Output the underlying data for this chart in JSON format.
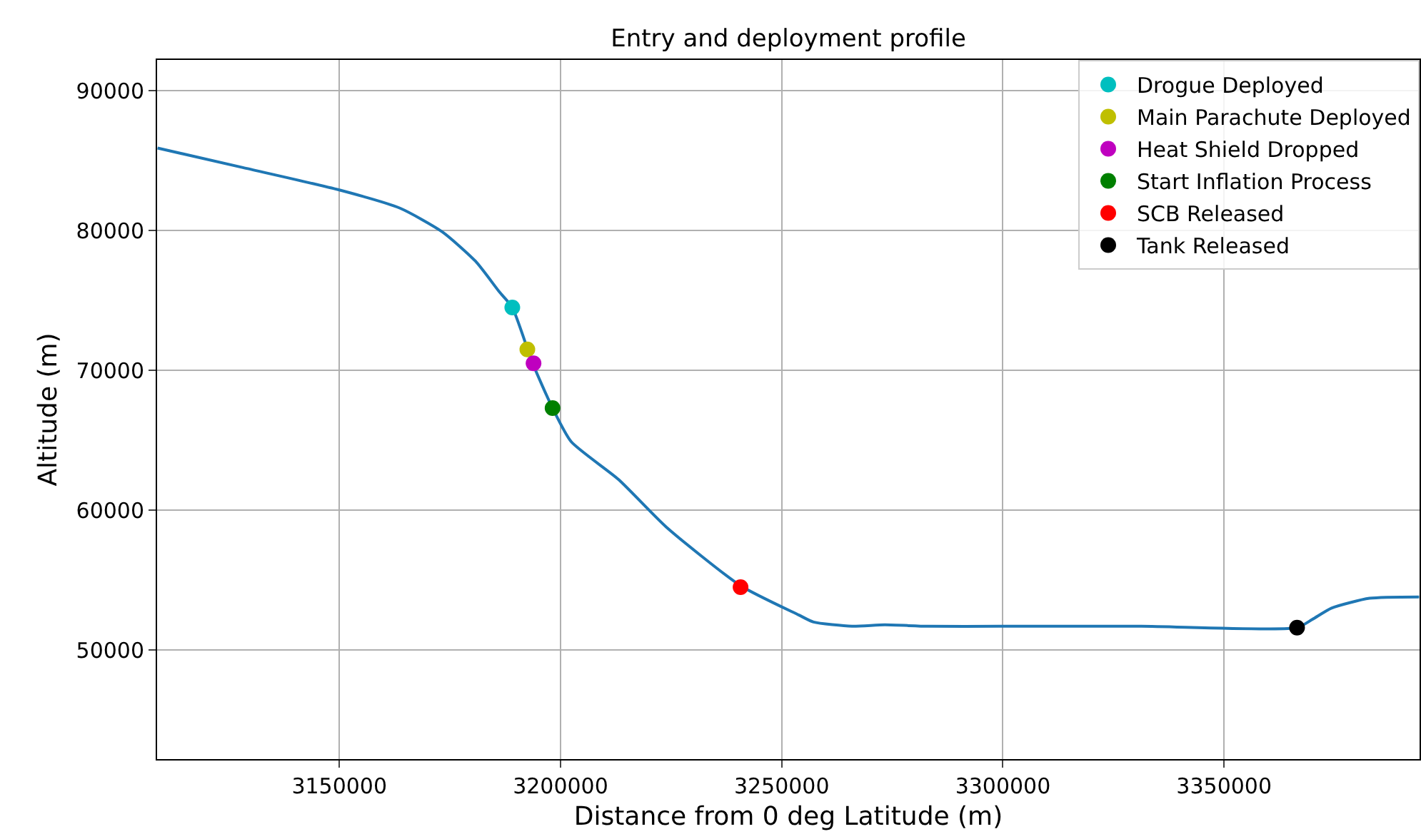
{
  "chart_data": {
    "type": "line",
    "title": "Entry and deployment profile",
    "xlabel": "Distance from 0 deg Latitude (m)",
    "ylabel": "Altitude (m)",
    "xlim": [
      3108800,
      3394200
    ],
    "xticks": [
      3150000,
      3200000,
      3250000,
      3300000,
      3350000
    ],
    "ylim": [
      42200,
      92200
    ],
    "yticks": [
      50000,
      60000,
      70000,
      80000,
      90000
    ],
    "grid": true,
    "legend": "top right",
    "series": [
      {
        "color": "#1f77b4",
        "x": [
          3108900,
          3128200,
          3150000,
          3163700,
          3173300,
          3180800,
          3186200,
          3189100,
          3193700,
          3198200,
          3202400,
          3213100,
          3223900,
          3240700,
          3253900,
          3257200,
          3265900,
          3273300,
          3283000,
          3299100,
          3331300,
          3366500,
          3370000,
          3374300,
          3382900,
          3394100
        ],
        "values": [
          85900,
          84500,
          82900,
          81600,
          79900,
          77800,
          75600,
          74500,
          70500,
          67300,
          64900,
          62200,
          58800,
          54600,
          52500,
          52000,
          51700,
          51800,
          51700,
          51700,
          51700,
          51600,
          52200,
          53000,
          53700,
          53800
        ]
      },
      {
        "type": "scatter",
        "name": "Drogue Deployed",
        "color": "#00bfbf",
        "x": [
          3189100
        ],
        "values": [
          74500
        ]
      },
      {
        "type": "scatter",
        "name": "Main Parachute Deployed",
        "color": "#bfbf00",
        "x": [
          3192500
        ],
        "values": [
          71500
        ]
      },
      {
        "type": "scatter",
        "name": "Heat Shield Dropped",
        "color": "#bf00bf",
        "x": [
          3193900
        ],
        "values": [
          70500
        ]
      },
      {
        "type": "scatter",
        "name": "Start Inflation Process",
        "color": "#008000",
        "x": [
          3198200
        ],
        "values": [
          67300
        ]
      },
      {
        "type": "scatter",
        "name": "SCB Released",
        "color": "#ff0000",
        "x": [
          3240700
        ],
        "values": [
          54500
        ]
      },
      {
        "type": "scatter",
        "name": "Tank Released",
        "color": "#000000",
        "x": [
          3366500
        ],
        "values": [
          51600
        ]
      }
    ]
  }
}
